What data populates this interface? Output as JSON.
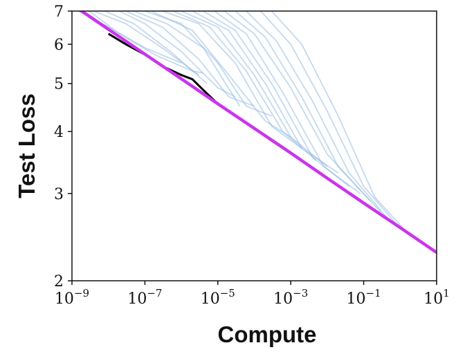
{
  "chart_data": {
    "type": "line",
    "xlabel": "Compute",
    "ylabel": "Test Loss",
    "xscale": "log",
    "yscale": "log",
    "xlim": [
      1e-09,
      10
    ],
    "ylim": [
      2,
      7
    ],
    "x_ticks": [
      {
        "value": 1e-09,
        "base": "10",
        "exp": "−9"
      },
      {
        "value": 1e-07,
        "base": "10",
        "exp": "−7"
      },
      {
        "value": 1e-05,
        "base": "10",
        "exp": "−5"
      },
      {
        "value": 0.001,
        "base": "10",
        "exp": "−3"
      },
      {
        "value": 0.1,
        "base": "10",
        "exp": "−1"
      },
      {
        "value": 10,
        "base": "10",
        "exp": "1"
      }
    ],
    "y_ticks": [
      {
        "value": 2,
        "label": "2"
      },
      {
        "value": 3,
        "label": "3"
      },
      {
        "value": 4,
        "label": "4"
      },
      {
        "value": 5,
        "label": "5"
      },
      {
        "value": 6,
        "label": "6"
      },
      {
        "value": 7,
        "label": "7"
      }
    ],
    "grid": false,
    "legend": "none",
    "colors": {
      "fit_line": "#cc33ee",
      "frontier": "#000000",
      "training_curves": "#8ab4e0"
    },
    "series": [
      {
        "role": "power-law fit",
        "x": [
          1.6e-09,
          1e-08,
          1e-07,
          1e-06,
          1e-05,
          0.0001,
          0.001,
          0.01,
          0.1,
          1,
          10
        ],
        "y": [
          7.05,
          6.43,
          5.73,
          5.11,
          4.55,
          4.06,
          3.62,
          3.22,
          2.87,
          2.56,
          2.28
        ]
      },
      {
        "role": "compute-efficient frontier",
        "x": [
          1e-08,
          3e-08,
          1e-07,
          3e-07,
          1e-06,
          2e-06,
          4e-06,
          1e-05,
          0.0001,
          0.001,
          0.01,
          0.1
        ],
        "y": [
          6.3,
          6.0,
          5.72,
          5.42,
          5.2,
          5.1,
          4.85,
          4.55,
          4.06,
          3.62,
          3.22,
          2.87
        ]
      }
    ],
    "training_curves": [
      {
        "x": [
          1.5e-09,
          1e-08,
          1e-07,
          1e-06
        ],
        "y": [
          7.0,
          6.5,
          5.9,
          5.5
        ]
      },
      {
        "x": [
          3e-09,
          2e-08,
          2e-07,
          2e-06,
          4e-06
        ],
        "y": [
          7.0,
          6.3,
          5.7,
          5.3,
          5.25
        ]
      },
      {
        "x": [
          4e-09,
          3e-08,
          3e-07,
          3e-06
        ],
        "y": [
          7.0,
          6.6,
          5.9,
          5.2
        ]
      },
      {
        "x": [
          8e-09,
          5e-08,
          5e-07,
          5e-06
        ],
        "y": [
          7.0,
          6.6,
          5.8,
          5.0
        ]
      },
      {
        "x": [
          2e-08,
          1e-07,
          1e-06,
          1e-05,
          3e-05
        ],
        "y": [
          7.0,
          6.6,
          5.8,
          4.9,
          4.7
        ]
      },
      {
        "x": [
          3e-08,
          3e-07,
          3e-06,
          2e-05,
          0.0001
        ],
        "y": [
          7.0,
          6.5,
          5.6,
          4.7,
          4.5
        ]
      },
      {
        "x": [
          5e-08,
          4e-07,
          4e-06,
          4e-05
        ],
        "y": [
          7.0,
          6.6,
          5.9,
          4.5
        ]
      },
      {
        "x": [
          1e-07,
          1e-06,
          1e-05,
          6e-05,
          0.0003
        ],
        "y": [
          7.0,
          6.6,
          5.5,
          4.5,
          4.3
        ]
      },
      {
        "x": [
          1.5e-07,
          2e-06,
          2e-05,
          0.0002,
          0.001
        ],
        "y": [
          7.0,
          6.4,
          5.2,
          4.2,
          3.9
        ]
      },
      {
        "x": [
          3e-07,
          3e-06,
          3e-05,
          0.0003,
          0.002
        ],
        "y": [
          7.0,
          6.6,
          5.5,
          4.1,
          3.7
        ]
      },
      {
        "x": [
          6e-07,
          6e-06,
          6e-05,
          0.0006,
          0.005
        ],
        "y": [
          7.0,
          6.5,
          5.3,
          4.0,
          3.5
        ]
      },
      {
        "x": [
          1e-06,
          1e-05,
          0.0001,
          0.001,
          0.01
        ],
        "y": [
          7.0,
          6.5,
          5.2,
          3.9,
          3.4
        ]
      },
      {
        "x": [
          2e-06,
          2e-05,
          0.0002,
          0.002,
          0.02
        ],
        "y": [
          7.0,
          6.4,
          5.0,
          3.7,
          3.3
        ]
      },
      {
        "x": [
          4e-06,
          3e-05,
          0.0003,
          0.004,
          0.04
        ],
        "y": [
          7.0,
          6.4,
          5.0,
          3.55,
          3.1
        ]
      },
      {
        "x": [
          8e-06,
          6e-05,
          0.0006,
          0.008,
          0.08
        ],
        "y": [
          7.0,
          6.3,
          4.8,
          3.4,
          3.0
        ]
      },
      {
        "x": [
          1.5e-05,
          0.0001,
          0.001,
          0.01,
          0.15
        ],
        "y": [
          7.0,
          6.3,
          4.9,
          3.6,
          2.9
        ]
      },
      {
        "x": [
          3e-05,
          0.0002,
          0.002,
          0.02,
          0.3
        ],
        "y": [
          7.0,
          6.2,
          4.7,
          3.4,
          2.75
        ]
      },
      {
        "x": [
          6e-05,
          0.0004,
          0.004,
          0.04,
          0.5
        ],
        "y": [
          7.0,
          6.1,
          4.6,
          3.3,
          2.65
        ]
      },
      {
        "x": [
          0.00015,
          0.001,
          0.01,
          0.1,
          1
        ],
        "y": [
          7.0,
          6.0,
          4.4,
          3.1,
          2.55
        ]
      },
      {
        "x": [
          0.0003,
          0.002,
          0.02,
          0.2,
          2
        ],
        "y": [
          7.0,
          6.0,
          4.3,
          2.95,
          2.45
        ]
      }
    ]
  }
}
